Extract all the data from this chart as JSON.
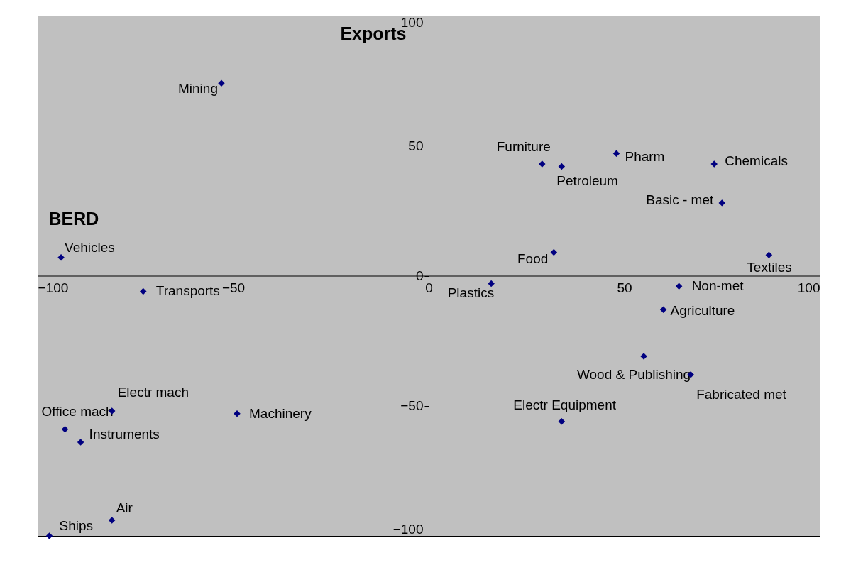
{
  "chart_data": {
    "type": "scatter",
    "xlabel": "BERD",
    "ylabel": "Exports",
    "xlim": [
      -100,
      100
    ],
    "ylim": [
      -100,
      100
    ],
    "xticks": [
      -100,
      -50,
      0,
      50,
      100
    ],
    "yticks": [
      -100,
      -50,
      0,
      50,
      100
    ],
    "grid": false,
    "marker": "diamond",
    "series": [
      {
        "color": "#000080",
        "x": [
          -53,
          -94,
          -73,
          -81,
          -49,
          -93,
          -89,
          -81,
          -97,
          29,
          34,
          48,
          73,
          75,
          32,
          87,
          16,
          64,
          60,
          55,
          67,
          34
        ],
        "values": [
          74,
          7,
          -6,
          -52,
          -53,
          -59,
          -64,
          -94,
          -100,
          43,
          42,
          47,
          43,
          28,
          9,
          8,
          -3,
          -4,
          -13,
          -31,
          -38,
          -56
        ]
      }
    ],
    "annotations": [
      {
        "text": "Mining",
        "x": -53,
        "y": 74
      },
      {
        "text": "Vehicles",
        "x": -94,
        "y": 7
      },
      {
        "text": "Transports",
        "x": -73,
        "y": -6
      },
      {
        "text": "Electr mach",
        "x": -81,
        "y": -52
      },
      {
        "text": "Machinery",
        "x": -49,
        "y": -53
      },
      {
        "text": "Office mach",
        "x": -93,
        "y": -59
      },
      {
        "text": "Instruments",
        "x": -89,
        "y": -64
      },
      {
        "text": "Air",
        "x": -81,
        "y": -94
      },
      {
        "text": "Ships",
        "x": -97,
        "y": -100
      },
      {
        "text": "Furniture",
        "x": 29,
        "y": 43
      },
      {
        "text": "Petroleum",
        "x": 34,
        "y": 42
      },
      {
        "text": "Pharm",
        "x": 48,
        "y": 47
      },
      {
        "text": "Chemicals",
        "x": 73,
        "y": 43
      },
      {
        "text": "Basic - met",
        "x": 75,
        "y": 28
      },
      {
        "text": "Food",
        "x": 32,
        "y": 9
      },
      {
        "text": "Textiles",
        "x": 87,
        "y": 8
      },
      {
        "text": "Plastics",
        "x": 16,
        "y": -3
      },
      {
        "text": "Non-met",
        "x": 64,
        "y": -4
      },
      {
        "text": "Agriculture",
        "x": 60,
        "y": -13
      },
      {
        "text": "Wood & Publishing",
        "x": 55,
        "y": -31
      },
      {
        "text": "Fabricated met",
        "x": 67,
        "y": -38
      },
      {
        "text": "Electr Equipment",
        "x": 34,
        "y": -56
      }
    ]
  }
}
